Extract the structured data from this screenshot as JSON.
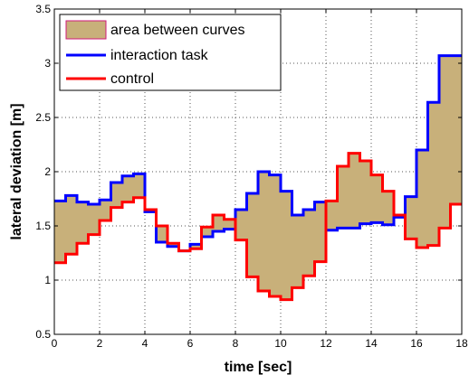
{
  "colors": {
    "fill": "#c8b07a",
    "fill_edge": "#d11a7a",
    "interaction": "#0000ff",
    "control": "#ff0000",
    "grid": "#555555"
  },
  "chart_data": {
    "type": "line",
    "title": "",
    "xlabel": "time [sec]",
    "ylabel": "lateral deviation [m]",
    "xlim": [
      0,
      18
    ],
    "ylim": [
      0.5,
      3.5
    ],
    "xticks": [
      0,
      2,
      4,
      6,
      8,
      10,
      12,
      14,
      16,
      18
    ],
    "yticks": [
      0.5,
      1,
      1.5,
      2,
      2.5,
      3,
      3.5
    ],
    "grid": true,
    "legend_position": "top-left",
    "legend": [
      "area between curves",
      "interaction task",
      "control"
    ],
    "step": 0.5,
    "fill_label": "area between curves",
    "series": [
      {
        "name": "interaction task",
        "color": "#0000ff",
        "x": [
          0,
          0.5,
          1,
          1.5,
          2,
          2.5,
          3,
          3.5,
          4,
          4.5,
          5,
          5.5,
          6,
          6.5,
          7,
          7.5,
          8,
          8.5,
          9,
          9.5,
          10,
          10.5,
          11,
          11.5,
          12,
          12.5,
          13,
          13.5,
          14,
          14.5,
          15,
          15.5,
          16,
          16.5,
          17,
          17.5
        ],
        "values": [
          1.73,
          1.78,
          1.72,
          1.7,
          1.74,
          1.9,
          1.96,
          1.98,
          1.63,
          1.35,
          1.31,
          1.27,
          1.33,
          1.4,
          1.45,
          1.47,
          1.65,
          1.8,
          2.0,
          1.97,
          1.82,
          1.6,
          1.65,
          1.72,
          1.46,
          1.48,
          1.48,
          1.52,
          1.53,
          1.51,
          1.58,
          1.77,
          2.2,
          2.64,
          3.07,
          3.07
        ]
      },
      {
        "name": "control",
        "color": "#ff0000",
        "x": [
          0,
          0.5,
          1,
          1.5,
          2,
          2.5,
          3,
          3.5,
          4,
          4.5,
          5,
          5.5,
          6,
          6.5,
          7,
          7.5,
          8,
          8.5,
          9,
          9.5,
          10,
          10.5,
          11,
          11.5,
          12,
          12.5,
          13,
          13.5,
          14,
          14.5,
          15,
          15.5,
          16,
          16.5,
          17,
          17.5
        ],
        "values": [
          1.16,
          1.24,
          1.34,
          1.42,
          1.55,
          1.67,
          1.72,
          1.76,
          1.65,
          1.5,
          1.34,
          1.27,
          1.29,
          1.49,
          1.6,
          1.56,
          1.37,
          1.03,
          0.9,
          0.85,
          0.82,
          0.93,
          1.04,
          1.17,
          1.73,
          2.05,
          2.17,
          2.1,
          1.97,
          1.82,
          1.6,
          1.38,
          1.3,
          1.32,
          1.48,
          1.7
        ]
      }
    ]
  }
}
